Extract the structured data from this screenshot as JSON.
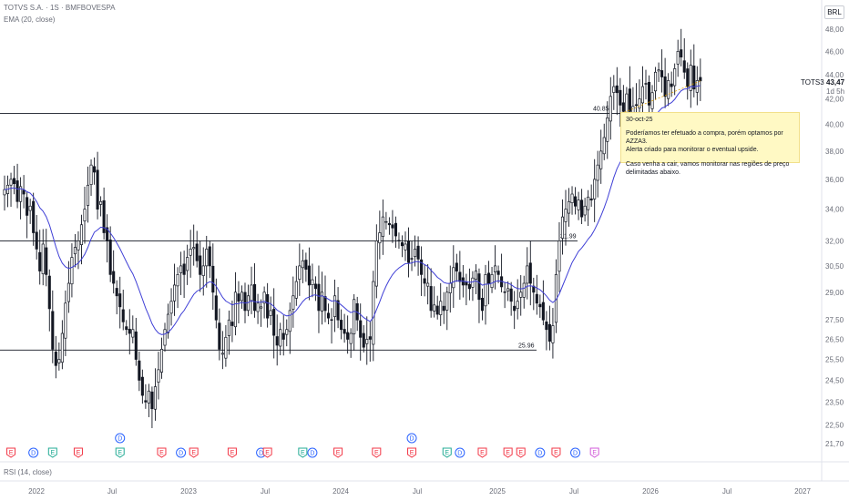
{
  "legend": {
    "title": "TOTVS S.A. · 1S · BMFBOVESPA",
    "ema": "EMA (20, close)",
    "rsi": "RSI (14, close)"
  },
  "currency": "BRL",
  "symbol": {
    "name": "TOTS3",
    "price": "43,47",
    "countdown": "1d 5h"
  },
  "note": {
    "date": "30-oct-25",
    "line1": "Poderíamos ter efetuado a compra, porém optamos por AZZA3.",
    "line2": "Alerta criado para monitorar o eventual upside.",
    "line3": "Caso venha a cair, vamos monitorar nas regiões de preço",
    "line4": "delimitadas abaixo."
  },
  "levels": [
    {
      "value": 40.85,
      "label": "40.85"
    },
    {
      "value": 31.99,
      "label": "31.99"
    },
    {
      "value": 25.96,
      "label": "25.96"
    }
  ],
  "colors": {
    "up": "#131722",
    "down": "#131722",
    "ema": "#3f3fd6",
    "level": "#131722",
    "earnings": "#f23645",
    "dividend": "#2962ff",
    "split": "#22ab94",
    "future": "#d15ad8"
  },
  "chart_data": {
    "type": "candlestick",
    "title": "TOTVS S.A. · 1S · BMFBOVESPA",
    "scale": "log",
    "y_ticks": [
      "48,00",
      "46,00",
      "44,00",
      "42,00",
      "40,00",
      "38,00",
      "36,00",
      "34,00",
      "32,00",
      "30,50",
      "29,00",
      "27,50",
      "26,50",
      "25,50",
      "24,50",
      "23,50",
      "22,50",
      "21,70"
    ],
    "x_ticks": [
      "2022",
      "Jul",
      "2023",
      "Jul",
      "2024",
      "Jul",
      "2025",
      "Jul",
      "2026",
      "Jul",
      "2027"
    ],
    "ema_period": 20,
    "series": [
      {
        "name": "TOTS3",
        "values": [
          35.3,
          35.6,
          36.0,
          35.7,
          34.5,
          35.5,
          35.0,
          33.6,
          34.2,
          32.5,
          31.5,
          30.2,
          31.8,
          30.0,
          28.1,
          26.0,
          25.2,
          25.5,
          26.8,
          28.4,
          29.5,
          31.0,
          31.6,
          32.0,
          33.0,
          34.0,
          35.6,
          37.0,
          36.5,
          34.0,
          34.5,
          32.5,
          32.0,
          30.0,
          29.5,
          28.8,
          28.2,
          27.4,
          27.0,
          26.8,
          27.0,
          25.5,
          24.5,
          23.8,
          23.5,
          24.0,
          23.2,
          24.2,
          25.0,
          26.0,
          27.0,
          27.8,
          28.5,
          29.4,
          30.0,
          30.5,
          30.0,
          31.0,
          31.5,
          31.6,
          30.8,
          30.0,
          30.5,
          31.5,
          30.5,
          29.0,
          27.5,
          26.0,
          25.8,
          26.6,
          27.5,
          27.2,
          29.0,
          28.5,
          29.0,
          28.0,
          28.8,
          29.4,
          28.0,
          28.4,
          28.2,
          29.0,
          27.6,
          28.0,
          26.7,
          26.2,
          27.0,
          26.5,
          27.0,
          28.0,
          28.8,
          29.6,
          30.5,
          30.8,
          30.3,
          29.4,
          29.7,
          29.2,
          28.0,
          29.0,
          28.0,
          27.6,
          27.5,
          28.8,
          27.5,
          27.0,
          26.8,
          26.5,
          26.8,
          28.6,
          27.5,
          26.6,
          26.1,
          26.5,
          26.5,
          29.6,
          32.0,
          32.5,
          33.5,
          33.2,
          33.0,
          32.8,
          32.3,
          32.0,
          31.7,
          31.8,
          30.7,
          30.9,
          31.5,
          30.9,
          30.0,
          29.5,
          29.5,
          28.0,
          28.3,
          27.8,
          28.5,
          28.0,
          29.0,
          29.5,
          30.4,
          30.2,
          29.6,
          29.4,
          29.4,
          29.2,
          29.8,
          30.2,
          28.6,
          28.0,
          30.0,
          29.5,
          30.0,
          30.5,
          30.0,
          29.3,
          29.0,
          29.2,
          28.5,
          28.0,
          28.5,
          29.0,
          29.5,
          30.5,
          29.5,
          29.0,
          28.4,
          28.2,
          27.5,
          27.0,
          26.4,
          27.2,
          30.0,
          32.0,
          33.5,
          34.0,
          34.5,
          35.0,
          34.2,
          34.6,
          33.5,
          34.2,
          34.8,
          34.6,
          36.0,
          37.0,
          38.0,
          39.0,
          40.5,
          42.2,
          43.0,
          42.5,
          41.5,
          41.0,
          42.4,
          41.0,
          41.4,
          41.5,
          42.0,
          43.0,
          43.2,
          41.5,
          42.5,
          44.2,
          44.4,
          43.8,
          42.2,
          43.5,
          43.0,
          44.5,
          46.0,
          45.5,
          44.2,
          43.0,
          44.8,
          42.8,
          43.5,
          43.47
        ]
      }
    ],
    "ema": {
      "name": "EMA (20, close)"
    },
    "events": [
      {
        "type": "E",
        "week": 2
      },
      {
        "type": "D",
        "week": 9
      },
      {
        "type": "E",
        "week": 15
      },
      {
        "type": "E",
        "week": 23
      },
      {
        "type": "D",
        "week": 36
      },
      {
        "type": "E",
        "week": 36
      },
      {
        "type": "E",
        "week": 49
      },
      {
        "type": "D",
        "week": 55
      },
      {
        "type": "E",
        "week": 59
      },
      {
        "type": "E",
        "week": 71
      },
      {
        "type": "D",
        "week": 80
      },
      {
        "type": "E",
        "week": 82
      },
      {
        "type": "E",
        "week": 93
      },
      {
        "type": "D",
        "week": 96
      },
      {
        "type": "E",
        "week": 104
      },
      {
        "type": "E",
        "week": 116
      },
      {
        "type": "D",
        "week": 127
      },
      {
        "type": "E",
        "week": 127
      },
      {
        "type": "E",
        "week": 138
      },
      {
        "type": "D",
        "week": 142
      },
      {
        "type": "E",
        "week": 149
      },
      {
        "type": "E",
        "week": 157
      },
      {
        "type": "E",
        "week": 161
      },
      {
        "type": "D",
        "week": 167
      },
      {
        "type": "E",
        "week": 172
      },
      {
        "type": "D",
        "week": 178
      },
      {
        "type": "E",
        "week": 184
      }
    ]
  }
}
